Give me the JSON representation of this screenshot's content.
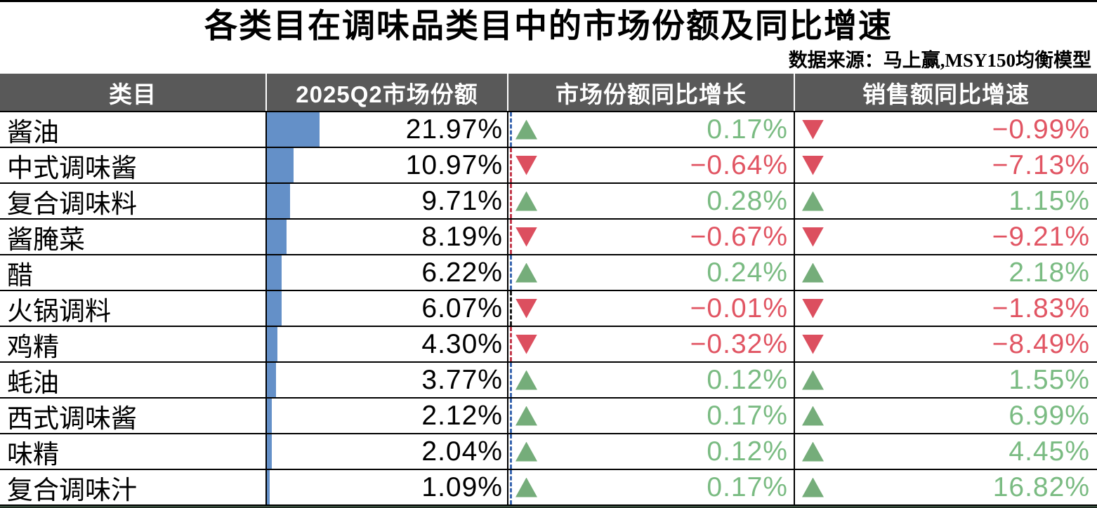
{
  "page": {
    "title": "各类目在调味品类目中的市场份额及同比增速",
    "source": "数据来源：马上赢,MSY150均衡模型"
  },
  "colors": {
    "header_bg": "#595959",
    "header_text": "#ffffff",
    "bar_blue": "#6490C8",
    "triangle_green": "#75AD7A",
    "triangle_red": "#DC4F5F",
    "value_green": "#7ABB82",
    "value_red": "#E15563",
    "border": "#000000"
  },
  "table": {
    "columns": [
      "类目",
      "2025Q2市场份额",
      "市场份额同比增长",
      "销售额同比增速"
    ],
    "rows": [
      {
        "category": "酱油",
        "share": "21.97%",
        "share_value": 21.97,
        "share_yoy": "0.17%",
        "share_yoy_dir": "up",
        "sales_yoy": "−0.99%",
        "sales_yoy_dir": "down",
        "dash": "#3a66b0"
      },
      {
        "category": "中式调味酱",
        "share": "10.97%",
        "share_value": 10.97,
        "share_yoy": "−0.64%",
        "share_yoy_dir": "down",
        "sales_yoy": "−7.13%",
        "sales_yoy_dir": "down",
        "dash": "#c33a4c"
      },
      {
        "category": "复合调味料",
        "share": "9.71%",
        "share_value": 9.71,
        "share_yoy": "0.28%",
        "share_yoy_dir": "up",
        "sales_yoy": "1.15%",
        "sales_yoy_dir": "up",
        "dash": "#c33a4c"
      },
      {
        "category": "酱腌菜",
        "share": "8.19%",
        "share_value": 8.19,
        "share_yoy": "−0.67%",
        "share_yoy_dir": "down",
        "sales_yoy": "−9.21%",
        "sales_yoy_dir": "down",
        "dash": "#c33a4c"
      },
      {
        "category": "醋",
        "share": "6.22%",
        "share_value": 6.22,
        "share_yoy": "0.24%",
        "share_yoy_dir": "up",
        "sales_yoy": "2.18%",
        "sales_yoy_dir": "up",
        "dash": "#3a66b0"
      },
      {
        "category": "火锅调料",
        "share": "6.07%",
        "share_value": 6.07,
        "share_yoy": "−0.01%",
        "share_yoy_dir": "down",
        "sales_yoy": "−1.83%",
        "sales_yoy_dir": "down",
        "dash": "#1a1a1a"
      },
      {
        "category": "鸡精",
        "share": "4.30%",
        "share_value": 4.3,
        "share_yoy": "−0.32%",
        "share_yoy_dir": "down",
        "sales_yoy": "−8.49%",
        "sales_yoy_dir": "down",
        "dash": "#c33a4c"
      },
      {
        "category": "蚝油",
        "share": "3.77%",
        "share_value": 3.77,
        "share_yoy": "0.12%",
        "share_yoy_dir": "up",
        "sales_yoy": "1.55%",
        "sales_yoy_dir": "up",
        "dash": "#3a66b0"
      },
      {
        "category": "西式调味酱",
        "share": "2.12%",
        "share_value": 2.12,
        "share_yoy": "0.17%",
        "share_yoy_dir": "up",
        "sales_yoy": "6.99%",
        "sales_yoy_dir": "up",
        "dash": "#3a66b0"
      },
      {
        "category": "味精",
        "share": "2.04%",
        "share_value": 2.04,
        "share_yoy": "0.12%",
        "share_yoy_dir": "up",
        "sales_yoy": "4.45%",
        "sales_yoy_dir": "up",
        "dash": "#3a66b0"
      },
      {
        "category": "复合调味汁",
        "share": "1.09%",
        "share_value": 1.09,
        "share_yoy": "0.17%",
        "share_yoy_dir": "up",
        "sales_yoy": "16.82%",
        "sales_yoy_dir": "up",
        "dash": "#3a66b0"
      }
    ]
  },
  "chart_data": {
    "type": "table",
    "title": "各类目在调味品类目中的市场份额及同比增速",
    "source_note": "数据来源：马上赢,MSY150均衡模型",
    "columns": [
      "类目",
      "2025Q2市场份额",
      "市场份额同比增长",
      "销售额同比增速"
    ],
    "categories": [
      "酱油",
      "中式调味酱",
      "复合调味料",
      "酱腌菜",
      "醋",
      "火锅调料",
      "鸡精",
      "蚝油",
      "西式调味酱",
      "味精",
      "复合调味汁"
    ],
    "series": [
      {
        "name": "2025Q2市场份额(%)",
        "values": [
          21.97,
          10.97,
          9.71,
          8.19,
          6.22,
          6.07,
          4.3,
          3.77,
          2.12,
          2.04,
          1.09
        ]
      },
      {
        "name": "市场份额同比增长(%)",
        "values": [
          0.17,
          -0.64,
          0.28,
          -0.67,
          0.24,
          -0.01,
          -0.32,
          0.12,
          0.17,
          0.12,
          0.17
        ]
      },
      {
        "name": "销售额同比增速(%)",
        "values": [
          -0.99,
          -7.13,
          1.15,
          -9.21,
          2.18,
          -1.83,
          -8.49,
          1.55,
          6.99,
          4.45,
          16.82
        ]
      }
    ],
    "layout_hints": {
      "data_bar_column": "2025Q2市场份额",
      "data_bar_scale_max_percent": 100,
      "trend_icons": "up=green triangle, down=red triangle",
      "value_alignment": "right"
    }
  }
}
